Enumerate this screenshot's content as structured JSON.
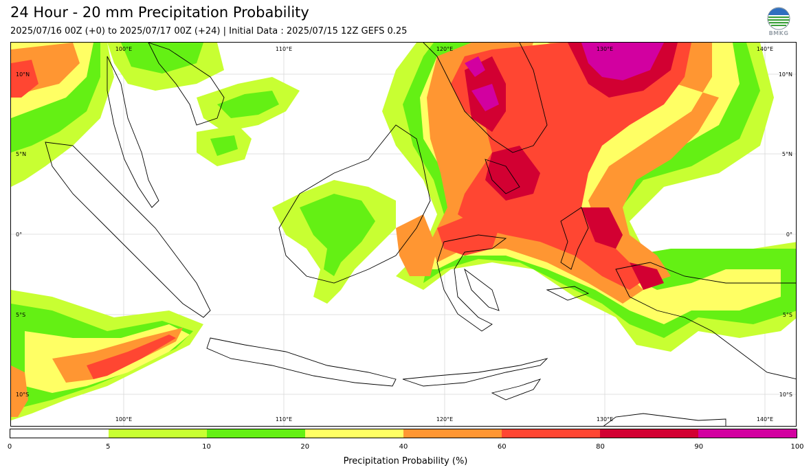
{
  "header": {
    "title": "24 Hour - 20 mm Precipitation Probability",
    "subtitle": "2025/07/16 00Z (+0) to 2025/07/17 00Z (+24) | Initial Data : 2025/07/15 12Z GEFS 0.25",
    "logo_text": "BMKG"
  },
  "map": {
    "lon_labels_top": [
      "100°E",
      "110°E",
      "120°E",
      "130°E",
      "140°E"
    ],
    "lon_labels_bottom": [
      "100°E",
      "110°E",
      "120°E",
      "130°E",
      "140°E"
    ],
    "lat_labels_left": [
      "10°N",
      "5°N",
      "0°",
      "5°S",
      "10°S"
    ],
    "lat_labels_right": [
      "10°N",
      "5°N",
      "0°",
      "5°S",
      "10°S"
    ]
  },
  "legend": {
    "colors": [
      "#ffffff",
      "#c8ff32",
      "#64f014",
      "#ffff64",
      "#ff9632",
      "#ff4632",
      "#d20032",
      "#d200a0"
    ],
    "ticks": [
      "0",
      "5",
      "10",
      "20",
      "40",
      "60",
      "80",
      "90",
      "100"
    ],
    "label": "Precipitation Probability (%)"
  }
}
